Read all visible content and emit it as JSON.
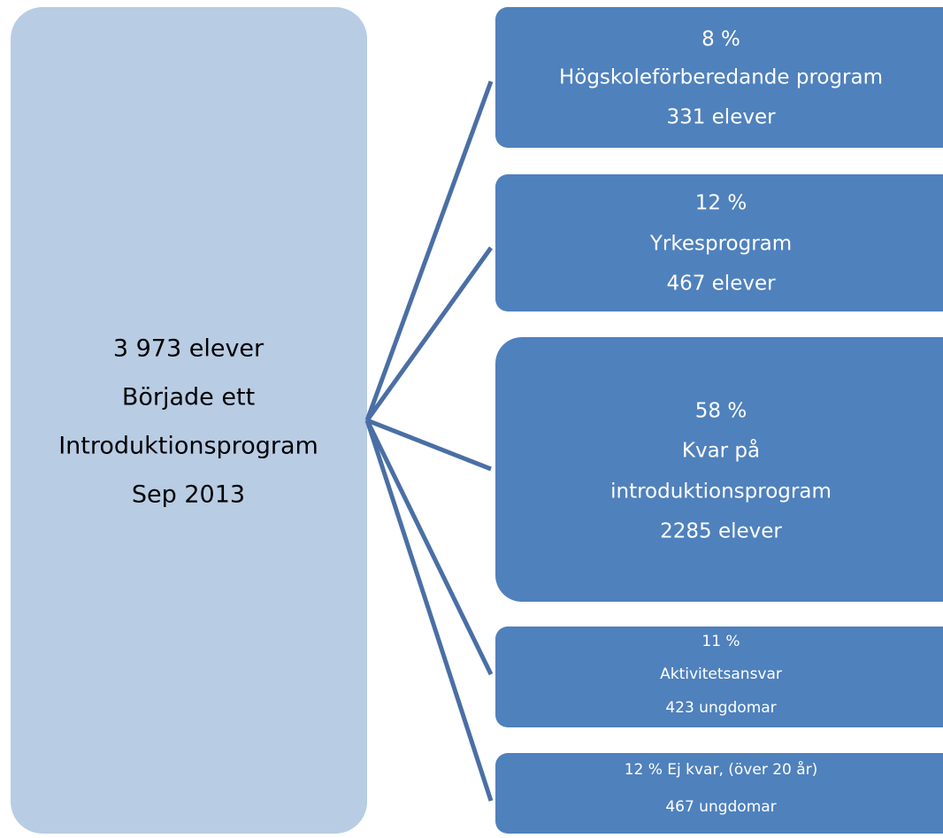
{
  "source": {
    "lines": [
      "3 973 elever",
      "Började ett",
      "Introduktionsprogram",
      "Sep 2013"
    ]
  },
  "targets": [
    {
      "lines": [
        "8 %",
        "Högskoleförberedande program",
        "331 elever"
      ]
    },
    {
      "lines": [
        "12 %",
        "Yrkesprogram",
        "467 elever"
      ]
    },
    {
      "lines": [
        "58 %",
        "Kvar på",
        "introduktionsprogram",
        "2285 elever"
      ]
    },
    {
      "lines": [
        "11 %",
        "Aktivitetsansvar",
        "423 ungdomar"
      ]
    },
    {
      "lines": [
        "12 % Ej kvar, (över 20 år)",
        "467 ungdomar"
      ]
    }
  ]
}
